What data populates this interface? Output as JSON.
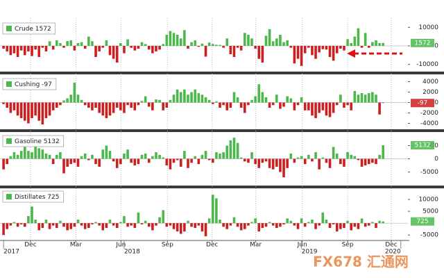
{
  "pos_color": "#4cb84c",
  "neg_color": "#cc1f1f",
  "x_axis": {
    "xlim": [
      0,
      115
    ],
    "xticks": [
      {
        "value": 8.6,
        "label": "Dec"
      },
      {
        "value": 21.4,
        "label": "Mar"
      },
      {
        "value": 34.1,
        "label": "Jun"
      },
      {
        "value": 47.2,
        "label": "Sep"
      },
      {
        "value": 59.8,
        "label": "Dec"
      },
      {
        "value": 72.1,
        "label": "Mar"
      },
      {
        "value": 85.2,
        "label": "Jun"
      },
      {
        "value": 98,
        "label": "Sep"
      },
      {
        "value": 110.3,
        "label": "Dec"
      }
    ],
    "year_ticks": [
      {
        "value": 1,
        "label": "2017"
      },
      {
        "value": 35,
        "label": "2018"
      },
      {
        "value": 85,
        "label": "2019"
      },
      {
        "value": 113,
        "label": "2020"
      }
    ]
  },
  "watermark": "FX678 汇通网",
  "chart_data": [
    {
      "type": "bar",
      "name": "Crude 1572",
      "ylim": [
        -13500,
        13500
      ],
      "yticks": [
        10000,
        0,
        -10000
      ],
      "values": [
        -1500,
        -3000,
        -5000,
        -4000,
        -6000,
        -2500,
        -5000,
        -3000,
        -5500,
        -2000,
        -6000,
        -1000,
        -3000,
        2500,
        -2000,
        3000,
        1500,
        -1000,
        2600,
        3000,
        -2500,
        1500,
        2000,
        -1500,
        5000,
        2500,
        -6000,
        -3000,
        -1000,
        3000,
        -5000,
        -7000,
        -9000,
        1500,
        -4000,
        3500,
        -1000,
        -2500,
        -1500,
        2000,
        1000,
        -2000,
        -4000,
        -3000,
        -2000,
        1000,
        6000,
        8000,
        7000,
        6000,
        4000,
        8500,
        -1500,
        2000,
        3000,
        -500,
        1200,
        -5800,
        1800,
        1000,
        600,
        500,
        -1000,
        4000,
        -4500,
        -6000,
        -1000,
        -2500,
        7000,
        6000,
        4000,
        -1500,
        -7000,
        -9000,
        5500,
        9000,
        2500,
        4000,
        6000,
        2000,
        3000,
        -1000,
        -9500,
        -7000,
        -10800,
        -4000,
        -1000,
        -5000,
        -7000,
        -3500,
        -1800,
        -2000,
        -6000,
        -8000,
        -4000,
        -1500,
        -2500,
        3600,
        1500,
        5000,
        9500,
        -1000,
        7000,
        -1000,
        2000,
        3000,
        1500,
        1572
      ]
    },
    {
      "type": "bar",
      "name": "Cushing -97",
      "ylim": [
        -5000,
        5000
      ],
      "yticks": [
        4000,
        2000,
        0,
        -2000,
        -4000
      ],
      "values": [
        -300,
        -1000,
        -2000,
        -1500,
        -2500,
        -3000,
        -3500,
        -4000,
        -3000,
        -2500,
        -3500,
        -4200,
        -3000,
        -2500,
        -1500,
        -1000,
        -500,
        400,
        800,
        1500,
        3800,
        1500,
        500,
        -500,
        -1000,
        -1500,
        -1000,
        -2000,
        -2500,
        -3000,
        -2500,
        -2000,
        -1000,
        -1500,
        -2000,
        -500,
        -1000,
        -1500,
        -500,
        300,
        1200,
        -800,
        -1500,
        600,
        500,
        -1500,
        -1000,
        500,
        1500,
        2500,
        2000,
        2500,
        1500,
        2000,
        2500,
        1800,
        1500,
        1000,
        500,
        -300,
        200,
        -1000,
        -500,
        -1500,
        -1000,
        2000,
        1000,
        -1000,
        -2000,
        -500,
        500,
        1200,
        3500,
        2000,
        1000,
        -1000,
        -500,
        1500,
        -1200,
        -800,
        1200,
        800,
        -1500,
        -500,
        1000,
        -1500,
        -1500,
        -2500,
        -3000,
        -2000,
        -1500,
        -2500,
        -2800,
        -2000,
        -500,
        1500,
        -1000,
        -500,
        -1500,
        2200,
        1500,
        1800,
        1500,
        1800,
        2000,
        1500,
        -2300,
        -97
      ]
    },
    {
      "type": "bar",
      "name": "Gasoline 5132",
      "ylim": [
        -9600,
        9600
      ],
      "yticks": [
        5000,
        0,
        -5000
      ],
      "values": [
        -4000,
        -2000,
        1000,
        2500,
        1500,
        3000,
        4500,
        3000,
        2500,
        6000,
        4000,
        3500,
        2000,
        1500,
        -2000,
        1500,
        2500,
        -5500,
        -3000,
        -2000,
        -1500,
        -3000,
        1000,
        2000,
        -500,
        1500,
        -2000,
        -3000,
        3500,
        5000,
        3000,
        -1000,
        -3500,
        -2000,
        2000,
        3500,
        -1500,
        -2500,
        -2000,
        1500,
        2000,
        -1500,
        1000,
        2500,
        1500,
        500,
        -2500,
        -4000,
        -1500,
        -500,
        -3000,
        3000,
        -3500,
        -1500,
        1000,
        -2000,
        1500,
        3000,
        -500,
        -1500,
        2500,
        2000,
        2500,
        5000,
        7000,
        8000,
        6000,
        500,
        -1000,
        -1500,
        2500,
        -2000,
        -3500,
        -1500,
        -1000,
        -3500,
        -4000,
        -3000,
        -5000,
        -7000,
        -3500,
        2000,
        -1500,
        500,
        1000,
        -2000,
        1500,
        -1000,
        2500,
        -4000,
        500,
        -1500,
        -3500,
        4500,
        2000,
        -2000,
        -3000,
        2500,
        1500,
        1000,
        -500,
        -3000,
        -2500,
        -2000,
        -1500,
        -2000,
        1500,
        5132
      ]
    },
    {
      "type": "bar",
      "name": "Distillates 725",
      "ylim": [
        -7000,
        14400
      ],
      "yticks": [
        10000,
        5000,
        -5000
      ],
      "values": [
        -5000,
        -2500,
        -1000,
        500,
        -1500,
        -500,
        -1500,
        3000,
        7000,
        1500,
        -3000,
        -2000,
        1500,
        -2500,
        -1000,
        -2000,
        1000,
        -1500,
        -3000,
        -2500,
        -1500,
        1500,
        -1000,
        -2500,
        -2000,
        -500,
        500,
        -1000,
        -3000,
        -2000,
        1500,
        -1000,
        -2000,
        500,
        3000,
        -1500,
        -1000,
        -2000,
        4500,
        -500,
        1000,
        -1500,
        -3000,
        -1000,
        2500,
        5500,
        -1500,
        -1000,
        -2500,
        -3500,
        -4500,
        -3500,
        1000,
        -1500,
        -2000,
        -1000,
        -3500,
        -5500,
        2000,
        12000,
        10500,
        1500,
        -1500,
        -2500,
        -1000,
        2500,
        -1500,
        -3000,
        -2500,
        -1000,
        500,
        2000,
        -3500,
        -2000,
        -1500,
        500,
        -1000,
        -2000,
        -1500,
        -500,
        2000,
        1000,
        -1000,
        -2500,
        2000,
        -1500,
        500,
        1500,
        -2500,
        -1000,
        4500,
        1500,
        -2000,
        -500,
        -3500,
        -2500,
        -2000,
        1000,
        -3000,
        -1500,
        -2500,
        2000,
        -1500,
        -1000,
        500,
        -2000,
        1000,
        725
      ]
    }
  ]
}
